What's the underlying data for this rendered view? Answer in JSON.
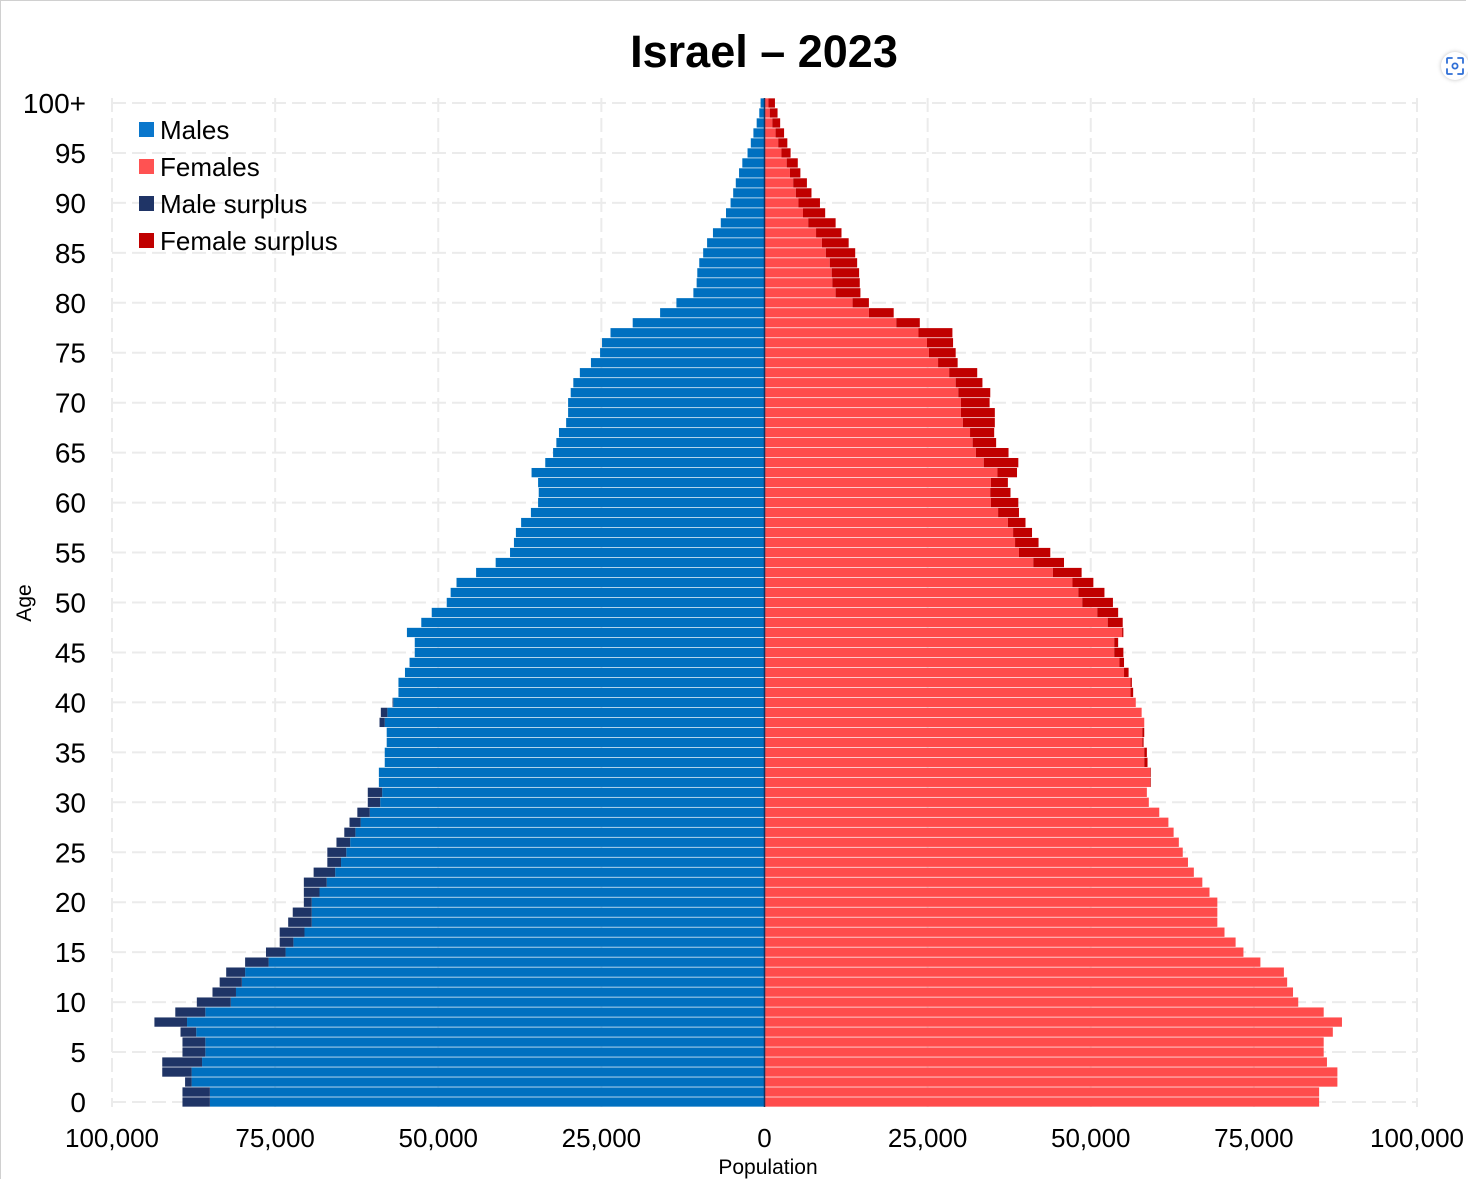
{
  "chart_data": {
    "type": "bar",
    "orientation": "horizontal-population-pyramid",
    "title": "Israel – 2023",
    "xlabel": "Population",
    "ylabel": "Age",
    "xlim": [
      -100000,
      100000
    ],
    "x_ticks": [
      "100,000",
      "75,000",
      "50,000",
      "25,000",
      "0",
      "25,000",
      "50,000",
      "75,000",
      "100,000"
    ],
    "y_ticks": [
      "0",
      "5",
      "10",
      "15",
      "20",
      "25",
      "30",
      "35",
      "40",
      "45",
      "50",
      "55",
      "60",
      "65",
      "70",
      "75",
      "80",
      "85",
      "90",
      "95",
      "100+"
    ],
    "grid": true,
    "legend": {
      "placement": "top-left",
      "entries": [
        {
          "label": "Males",
          "color": "#0a77cc"
        },
        {
          "label": "Females",
          "color": "#ff5252"
        },
        {
          "label": "Male surplus",
          "color": "#1f3466"
        },
        {
          "label": "Female surplus",
          "color": "#c00000"
        }
      ]
    },
    "colors": {
      "males": "#0070c0",
      "females": "#ff4c4c",
      "male_surplus": "#1f3466",
      "female_surplus": "#c00000"
    },
    "categories": [
      0,
      1,
      2,
      3,
      4,
      5,
      6,
      7,
      8,
      9,
      10,
      11,
      12,
      13,
      14,
      15,
      16,
      17,
      18,
      19,
      20,
      21,
      22,
      23,
      24,
      25,
      26,
      27,
      28,
      29,
      30,
      31,
      32,
      33,
      34,
      35,
      36,
      37,
      38,
      39,
      40,
      41,
      42,
      43,
      44,
      45,
      46,
      47,
      48,
      49,
      50,
      51,
      52,
      53,
      54,
      55,
      56,
      57,
      58,
      59,
      60,
      61,
      62,
      63,
      64,
      65,
      66,
      67,
      68,
      69,
      70,
      71,
      72,
      73,
      74,
      75,
      76,
      77,
      78,
      79,
      80,
      81,
      82,
      83,
      84,
      85,
      86,
      87,
      88,
      89,
      90,
      91,
      92,
      93,
      94,
      95,
      96,
      97,
      98,
      99,
      "100+"
    ],
    "series": [
      {
        "name": "Males",
        "values": [
          89200,
          89200,
          88800,
          92300,
          92300,
          89200,
          89200,
          89500,
          93500,
          90300,
          87000,
          84600,
          83500,
          82500,
          79600,
          76400,
          74300,
          74300,
          73000,
          72300,
          70600,
          70600,
          70600,
          69100,
          67000,
          67000,
          65600,
          64400,
          63600,
          62400,
          60800,
          60800,
          59100,
          59100,
          58200,
          58200,
          57900,
          57900,
          59000,
          58800,
          57000,
          56100,
          56100,
          55100,
          54400,
          53600,
          53600,
          54800,
          52600,
          51000,
          48700,
          48100,
          47200,
          44200,
          41200,
          39000,
          38400,
          38100,
          37300,
          35800,
          34700,
          34600,
          34700,
          35700,
          33600,
          32400,
          31900,
          31500,
          30400,
          30100,
          30100,
          29700,
          29300,
          28300,
          26600,
          25200,
          24900,
          23600,
          20200,
          16000,
          13500,
          10900,
          10400,
          10300,
          10000,
          9400,
          8800,
          7900,
          6700,
          5900,
          5200,
          4800,
          4400,
          3900,
          3400,
          2600,
          2100,
          1700,
          1200,
          800,
          600
        ]
      },
      {
        "name": "Females",
        "values": [
          85000,
          85000,
          87800,
          87800,
          86200,
          85700,
          85700,
          87100,
          88500,
          85700,
          81800,
          81000,
          80100,
          79600,
          76000,
          73400,
          72200,
          70500,
          69400,
          69400,
          69400,
          68200,
          67100,
          65800,
          64900,
          64100,
          63500,
          62700,
          61900,
          60500,
          58900,
          58600,
          59200,
          59200,
          58700,
          58600,
          58100,
          58200,
          58200,
          57800,
          56900,
          56500,
          56300,
          55800,
          55100,
          55000,
          54200,
          55000,
          54900,
          54200,
          53400,
          52100,
          50400,
          48600,
          45900,
          43800,
          42000,
          41000,
          40000,
          39000,
          38900,
          37700,
          37300,
          38700,
          38900,
          37400,
          35500,
          35200,
          35300,
          35300,
          34500,
          34600,
          33400,
          32600,
          29600,
          29300,
          28900,
          28800,
          23800,
          19800,
          16000,
          14700,
          14600,
          14500,
          14200,
          13900,
          12900,
          11800,
          10900,
          9300,
          8500,
          7200,
          6500,
          5500,
          5100,
          4000,
          3500,
          3000,
          2400,
          2000,
          1600
        ]
      }
    ]
  },
  "controls": {
    "lens_icon": "visual-search-icon"
  }
}
